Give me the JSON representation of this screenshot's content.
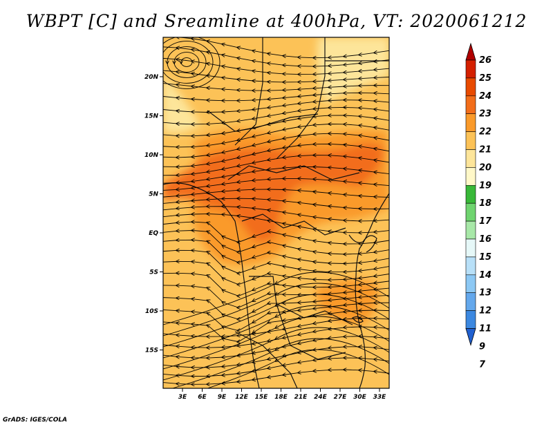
{
  "title": "WBPT [C] and Sreamline at 400hPa, VT: 2020061212",
  "credit": "GrADS: IGES/COLA",
  "map": {
    "lat_labels": [
      "20N",
      "15N",
      "10N",
      "5N",
      "EQ",
      "5S",
      "10S",
      "15S"
    ],
    "lon_labels": [
      "3E",
      "6E",
      "9E",
      "12E",
      "15E",
      "18E",
      "21E",
      "24E",
      "27E",
      "30E",
      "33E"
    ],
    "background_color": "#fcc257",
    "warm_core_color": "#fa9a2a",
    "hot_core_color": "#f26d1a",
    "cool_color": "#fde59a"
  },
  "colorbar": {
    "labels": [
      "26",
      "25",
      "24",
      "23",
      "22",
      "21",
      "20",
      "19",
      "18",
      "17",
      "16",
      "15",
      "14",
      "13",
      "12",
      "11",
      "9",
      "7"
    ],
    "colors": [
      "#b00000",
      "#d42000",
      "#e84a00",
      "#f26d1a",
      "#fa9a2a",
      "#fcc257",
      "#fde59a",
      "#fff8c8",
      "#38b838",
      "#6fd46f",
      "#a8e8a8",
      "#e6f8f8",
      "#b8e0f8",
      "#8cc8f4",
      "#64a8ec",
      "#3c88e0",
      "#2060d0"
    ]
  }
}
